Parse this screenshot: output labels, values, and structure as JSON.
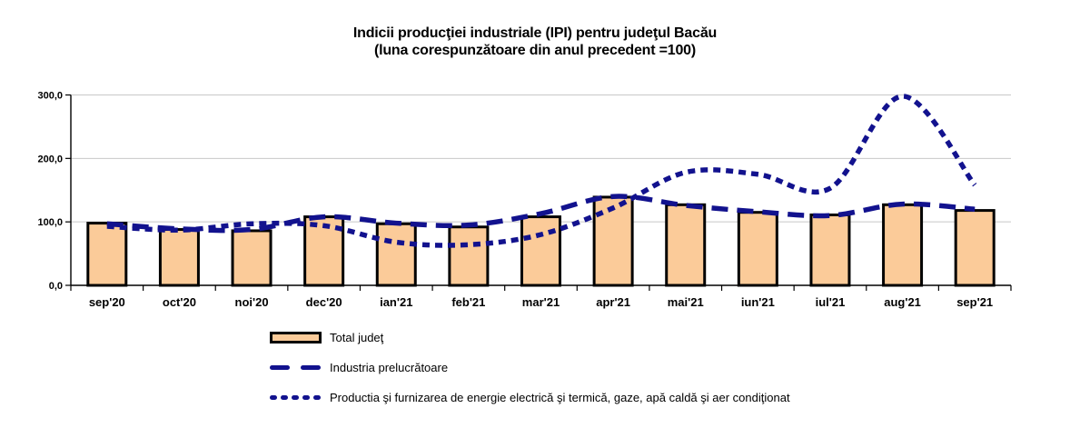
{
  "chart_data": {
    "type": "combo bar + smoothed dashed lines",
    "title": "Indicii producţiei industriale (IPI) pentru judeţul Bacău",
    "subtitle": "(luna corespunzătoare din anul precedent =100)",
    "categories": [
      "sep'20",
      "oct'20",
      "noi'20",
      "dec'20",
      "ian'21",
      "feb'21",
      "mar'21",
      "apr'21",
      "mai'21",
      "iun'21",
      "iul'21",
      "aug'21",
      "sep'21"
    ],
    "series": [
      {
        "name": "Total judeţ",
        "type": "bar",
        "values": [
          98,
          88,
          86,
          108,
          97,
          92,
          108,
          139,
          127,
          115,
          111,
          127,
          118
        ]
      },
      {
        "name": "Industria prelucrătoare",
        "type": "line",
        "dash": "long",
        "values": [
          97,
          89,
          88,
          108,
          98,
          95,
          113,
          140,
          126,
          116,
          110,
          128,
          120
        ]
      },
      {
        "name": "Productia şi furnizarea de energie electrică şi termică, gaze, apă caldă şi aer condiţionat",
        "type": "line",
        "dash": "short",
        "values": [
          93,
          87,
          97,
          94,
          68,
          64,
          80,
          122,
          178,
          175,
          153,
          298,
          158
        ]
      }
    ],
    "ylim": [
      0,
      300
    ],
    "ytick_values": [
      0,
      100,
      200,
      300
    ],
    "ytick_labels": [
      "0,0",
      "100,0",
      "200,0",
      "300,0"
    ],
    "grid": true,
    "legend_position": "bottom-left"
  },
  "colors": {
    "background": "#FFFFFF",
    "text": "#000000",
    "bar_fill": "#FBCB99",
    "bar_border": "#000000",
    "line": "#12128E",
    "grid": "#C8C8C8",
    "axis": "#000000"
  }
}
